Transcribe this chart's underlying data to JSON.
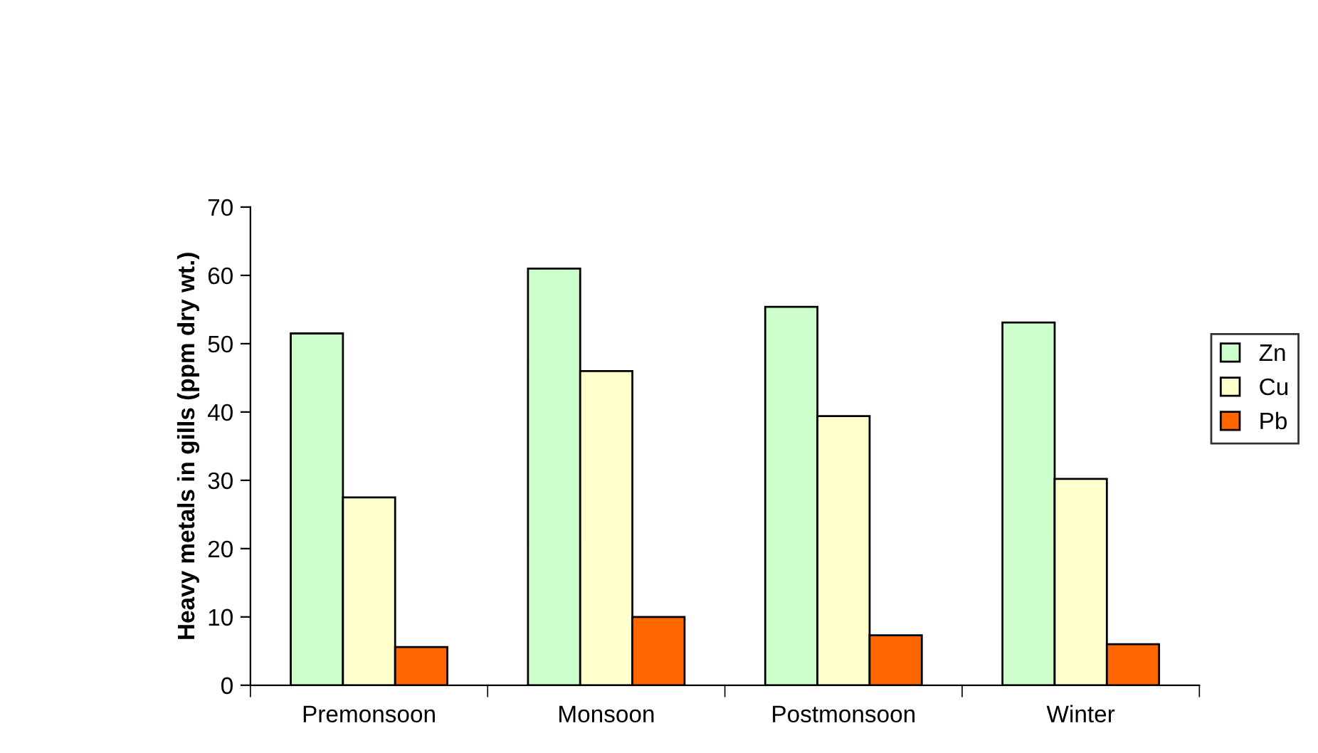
{
  "chart_data": {
    "type": "bar",
    "ylabel": "Heavy metals in gills (ppm dry wt.)",
    "categories": [
      "Premonsoon",
      "Monsoon",
      "Postmonsoon",
      "Winter"
    ],
    "series": [
      {
        "name": "Zn",
        "color": "#ccffcc",
        "values": [
          51.5,
          61.0,
          55.4,
          53.1
        ]
      },
      {
        "name": "Cu",
        "color": "#ffffcc",
        "values": [
          27.5,
          46.0,
          39.4,
          30.2
        ]
      },
      {
        "name": "Pb",
        "color": "#ff6600",
        "values": [
          5.6,
          10.0,
          7.3,
          6.0
        ]
      }
    ],
    "ylim": [
      0,
      70
    ],
    "yticks": [
      0,
      10,
      20,
      30,
      40,
      50,
      60,
      70
    ],
    "grid": false,
    "legend": "right"
  }
}
